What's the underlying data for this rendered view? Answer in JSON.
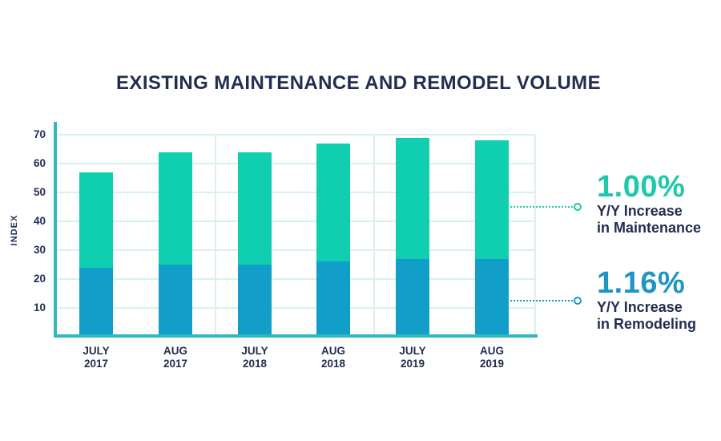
{
  "header": {
    "title": "EXISTING MAINTENANCE AND REMODEL VOLUME"
  },
  "chart_data": {
    "type": "bar",
    "stacked": true,
    "title": "EXISTING MAINTENANCE AND REMODEL VOLUME",
    "xlabel": "",
    "ylabel": "INDEX",
    "ylim": [
      0,
      70
    ],
    "yticks": [
      70,
      60,
      50,
      40,
      30,
      20,
      10
    ],
    "grid": true,
    "legend": "none",
    "categories": [
      {
        "month": "JULY",
        "year": "2017"
      },
      {
        "month": "AUG",
        "year": "2017"
      },
      {
        "month": "JULY",
        "year": "2018"
      },
      {
        "month": "AUG",
        "year": "2018"
      },
      {
        "month": "JULY",
        "year": "2019"
      },
      {
        "month": "AUG",
        "year": "2019"
      }
    ],
    "series": [
      {
        "name": "Remodeling",
        "color": "#119fc9",
        "values": [
          24,
          25,
          25,
          26,
          27,
          27
        ]
      },
      {
        "name": "Maintenance",
        "color": "#10cfb1",
        "values": [
          33,
          39,
          39,
          41,
          42,
          41
        ]
      }
    ],
    "stack_totals": [
      57,
      64,
      64,
      67,
      69,
      68
    ]
  },
  "annotations": [
    {
      "percent": "1.00%",
      "line1": "Y/Y Increase",
      "line2": "in Maintenance",
      "accent_color": "#1ec9ab"
    },
    {
      "percent": "1.16%",
      "line1": "Y/Y Increase",
      "line2": "in Remodeling",
      "accent_color": "#1e95c2"
    }
  ],
  "colors": {
    "title_navy": "#232d4f",
    "axis_teal": "#2fbabf",
    "gridline": "#d8f1ec",
    "maintenance_green": "#10cfb1",
    "remodeling_blue": "#119fc9"
  }
}
